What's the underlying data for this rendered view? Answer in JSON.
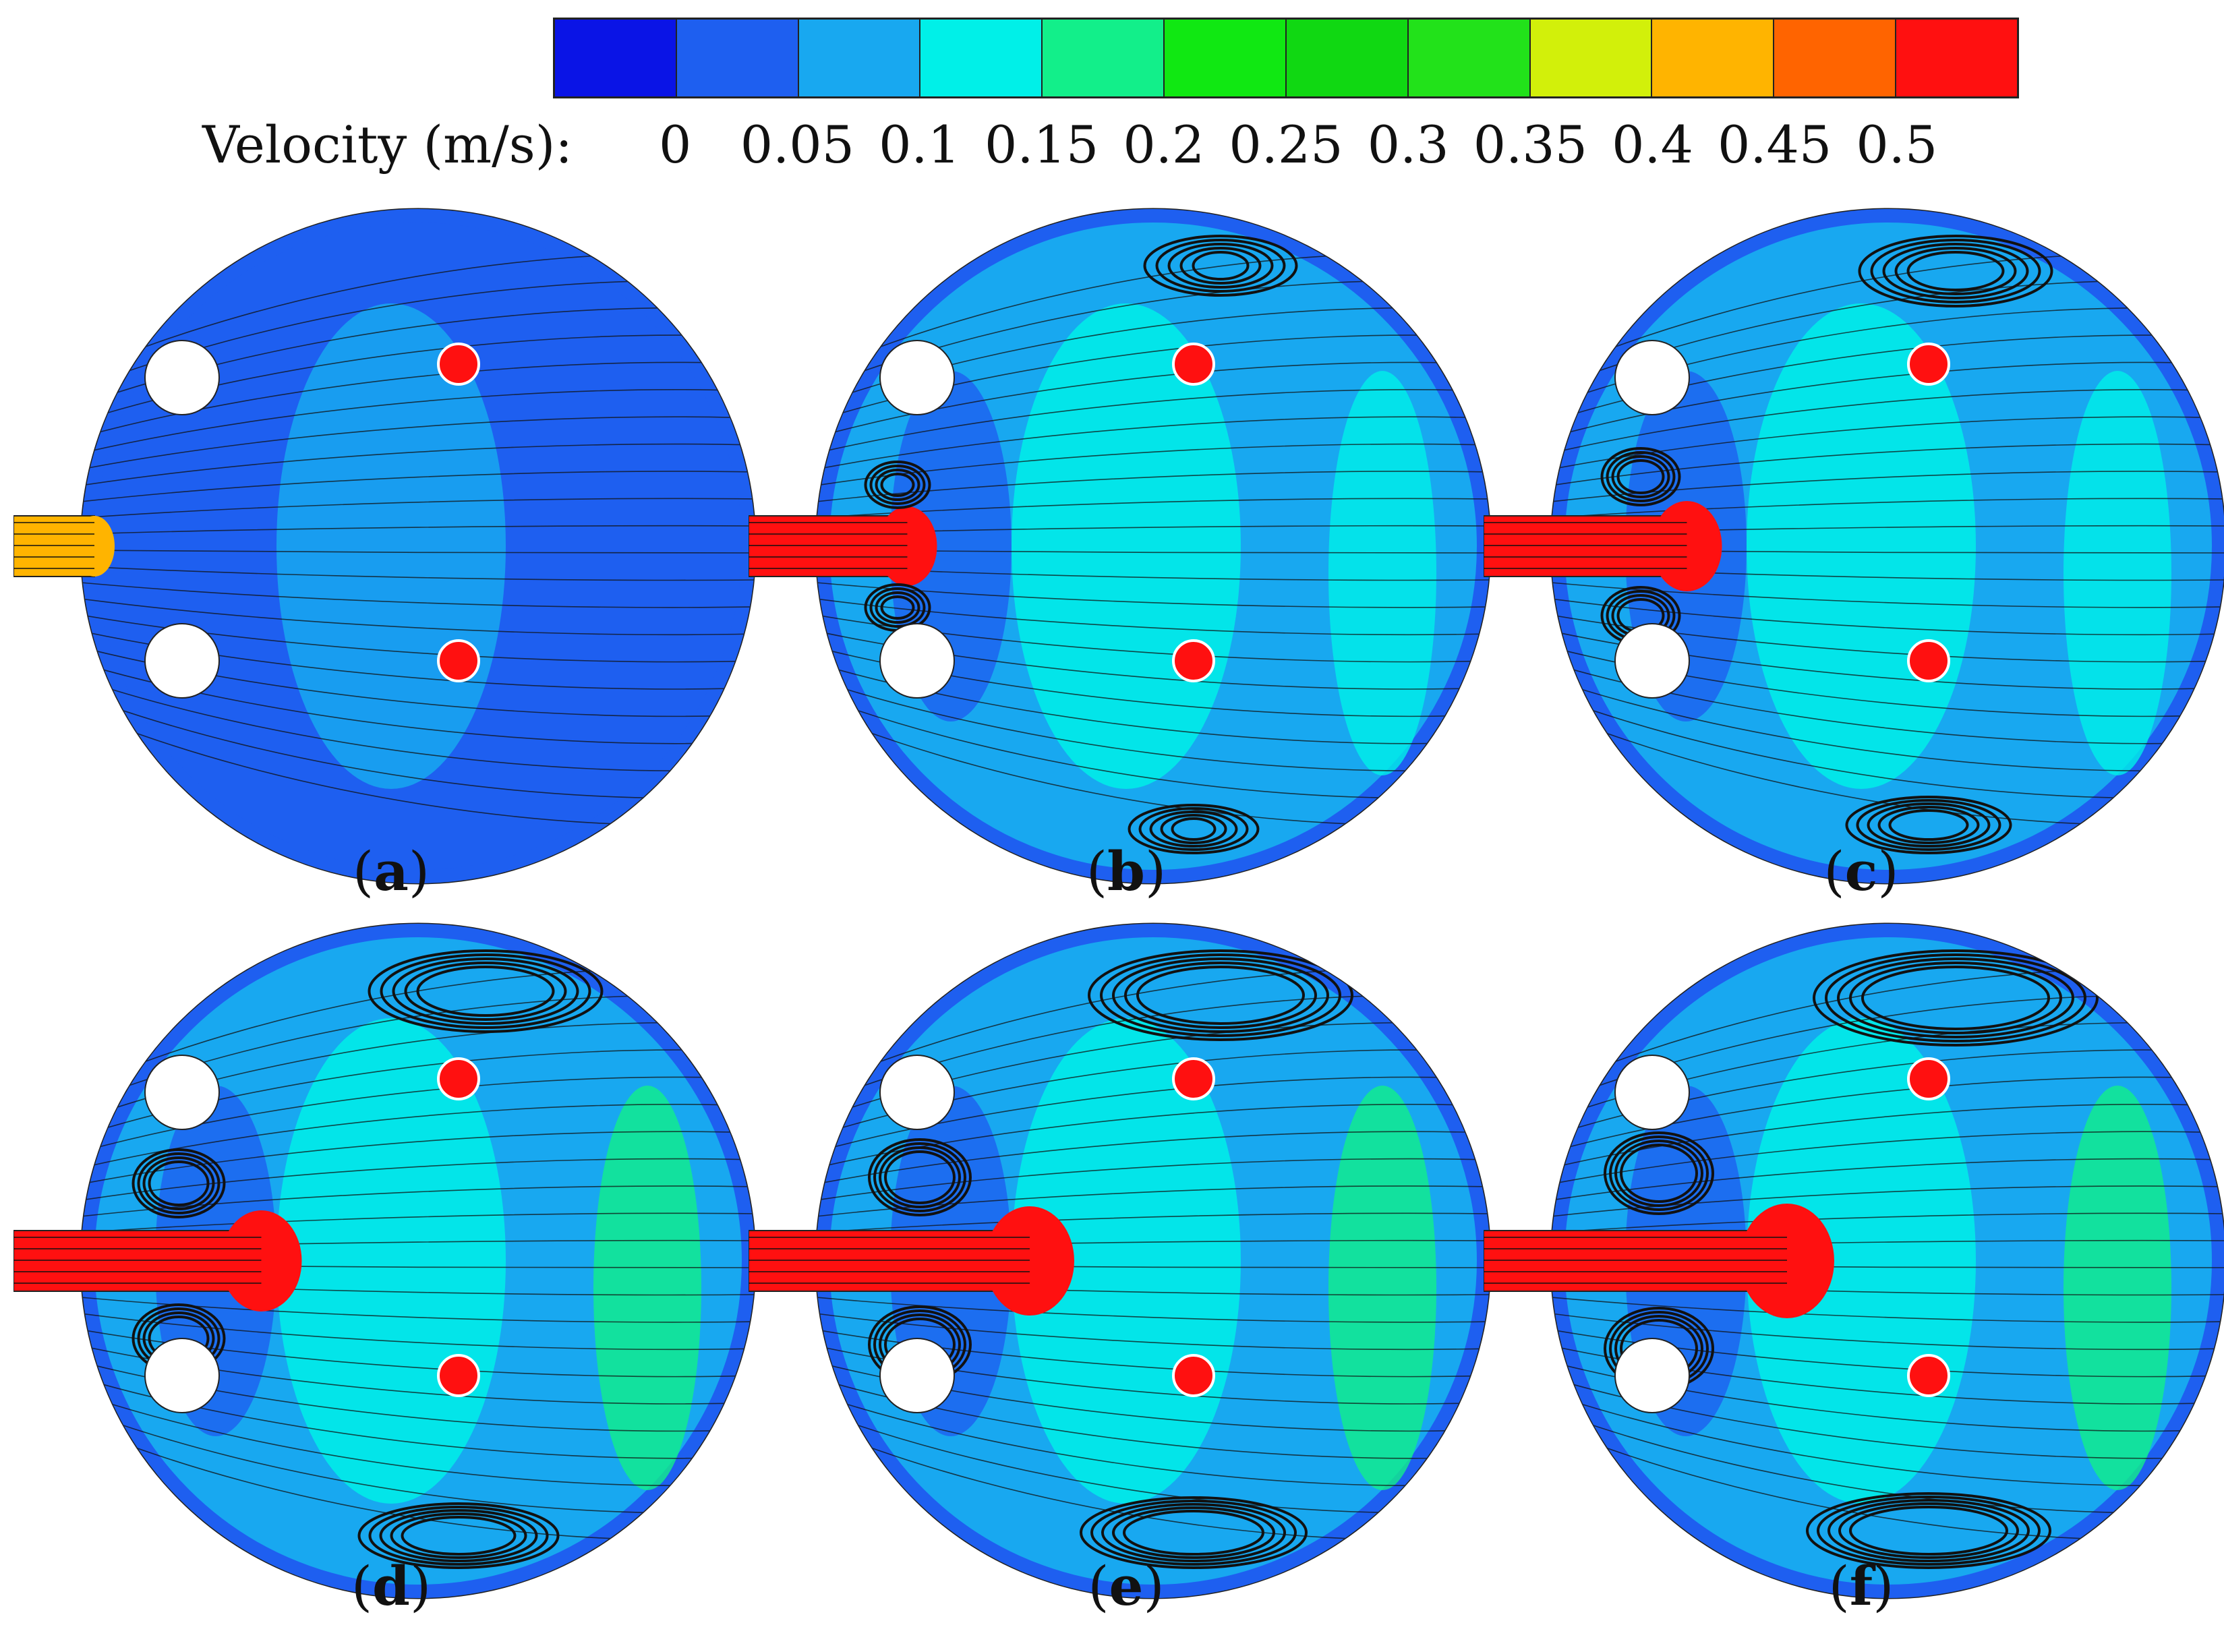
{
  "colorbar": {
    "title": "Velocity (m/s):",
    "ticks": [
      "0",
      "0.05",
      "0.1",
      "0.15",
      "0.2",
      "0.25",
      "0.3",
      "0.35",
      "0.4",
      "0.45",
      "0.5"
    ],
    "colors": [
      "#0a14e6",
      "#1e5ff0",
      "#18a8f0",
      "#00f0e8",
      "#12ef8a",
      "#10e812",
      "#10d812",
      "#22e21a",
      "#d2f00a",
      "#ffb400",
      "#ff6400",
      "#ff1010"
    ]
  },
  "panels": [
    {
      "letter": "a",
      "jet": 0.35,
      "vortex": 0.0
    },
    {
      "letter": "b",
      "jet": 0.5,
      "vortex": 0.35
    },
    {
      "letter": "c",
      "jet": 0.5,
      "vortex": 0.55
    },
    {
      "letter": "d",
      "jet": 0.5,
      "vortex": 0.75
    },
    {
      "letter": "e",
      "jet": 0.5,
      "vortex": 0.9
    },
    {
      "letter": "f",
      "jet": 0.5,
      "vortex": 1.0
    }
  ]
}
